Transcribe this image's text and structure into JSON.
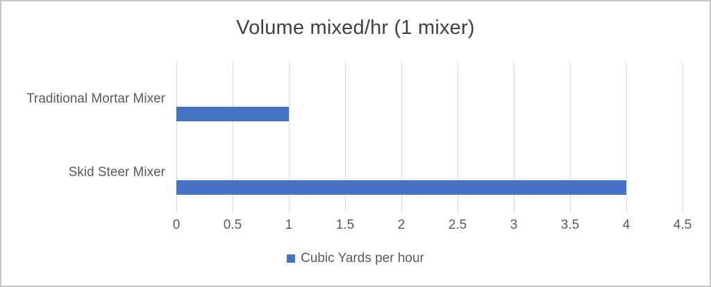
{
  "window": {
    "background": "#ffffff",
    "border_color": "#c6c6c6"
  },
  "chart_data": {
    "type": "bar",
    "orientation": "horizontal",
    "title": "Volume mixed/hr (1 mixer)",
    "categories": [
      "Traditional Mortar Mixer",
      "Skid Steer Mixer"
    ],
    "values": [
      1,
      4
    ],
    "series": [
      {
        "name": "Cubic Yards per hour",
        "values": [
          1,
          4
        ]
      }
    ],
    "xlabel": "",
    "ylabel": "",
    "xlim": [
      0,
      4.5
    ],
    "x_ticks": [
      "0",
      "0.5",
      "1",
      "1.5",
      "2",
      "2.5",
      "3",
      "3.5",
      "4",
      "4.5"
    ],
    "x_tick_values": [
      0,
      0.5,
      1,
      1.5,
      2,
      2.5,
      3,
      3.5,
      4,
      4.5
    ],
    "grid": true,
    "legend_position": "bottom",
    "colors": {
      "bar": "#4472C4",
      "gridline": "#d9d9d9",
      "title_text": "#404040",
      "axis_text": "#595959"
    }
  },
  "legend": {
    "label": "Cubic Yards per hour",
    "swatch_color": "#4472C4"
  }
}
